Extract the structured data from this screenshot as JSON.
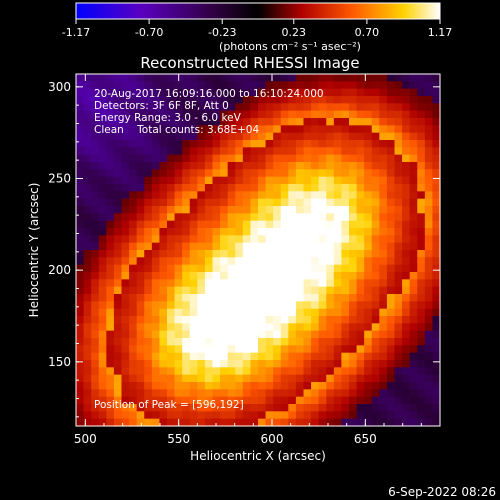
{
  "colorbar": {
    "ticks": [
      "-1.17",
      "-0.70",
      "-0.23",
      "0.23",
      "0.70",
      "1.17"
    ],
    "tick_values": [
      -1.17,
      -0.7,
      -0.23,
      0.23,
      0.7,
      1.17
    ],
    "range": [
      -1.17,
      1.17
    ]
  },
  "colorbar_unit": "(photons cm⁻² s⁻¹ asec⁻²)",
  "title": "Reconstructed RHESSI Image",
  "info_lines": [
    "20-Aug-2017 16:09:16.000 to 16:10:24.000",
    "Detectors: 3F 6F 8F, Att 0",
    "Energy Range: 3.0 - 6.0 keV",
    "Clean    Total counts: 3.68E+04"
  ],
  "peak_label": "Position of Peak = [596,192]",
  "footer_date": "6-Sep-2022 08:26",
  "chart_data": {
    "type": "heatmap",
    "xlabel": "Heliocentric X (arcsec)",
    "ylabel": "Heliocentric Y (arcsec)",
    "xlim": [
      495,
      690
    ],
    "ylim": [
      115,
      307
    ],
    "x_ticks": [
      500,
      550,
      600,
      650
    ],
    "y_ticks": [
      150,
      200,
      250,
      300
    ],
    "x_tick_labels": [
      "500",
      "550",
      "600",
      "650"
    ],
    "y_tick_labels": [
      "150",
      "200",
      "250",
      "300"
    ],
    "peak": [
      596,
      192
    ],
    "colormap_stops": [
      "#0000ff",
      "#4b00a0",
      "#2a0030",
      "#000000",
      "#a00000",
      "#ff5000",
      "#ffd000",
      "#ffffff"
    ]
  }
}
